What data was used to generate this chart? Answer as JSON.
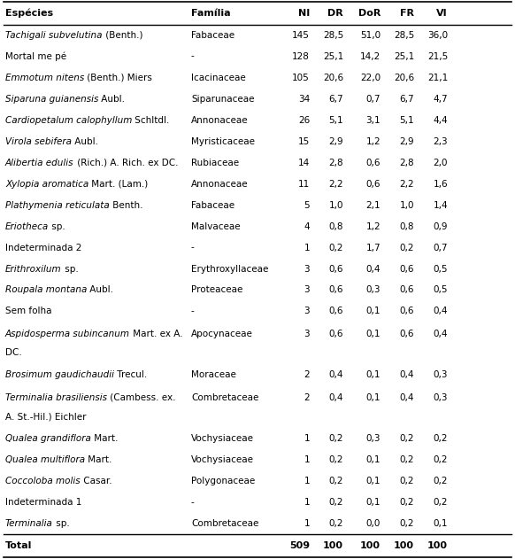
{
  "headers": [
    "Espécies",
    "Família",
    "NI",
    "DR",
    "DoR",
    "FR",
    "VI"
  ],
  "rows": [
    {
      "italic": "Tachigali subvelutina",
      "roman": " (Benth.)",
      "familia": "Fabaceae",
      "NI": "145",
      "DR": "28,5",
      "DoR": "51,0",
      "FR": "28,5",
      "VI": "36,0",
      "double": false
    },
    {
      "italic": "",
      "roman": "Mortal me pé",
      "familia": "-",
      "NI": "128",
      "DR": "25,1",
      "DoR": "14,2",
      "FR": "25,1",
      "VI": "21,5",
      "double": false
    },
    {
      "italic": "Emmotum nitens",
      "roman": " (Benth.) Miers",
      "familia": "Icacinaceae",
      "NI": "105",
      "DR": "20,6",
      "DoR": "22,0",
      "FR": "20,6",
      "VI": "21,1",
      "double": false
    },
    {
      "italic": "Siparuna guianensis",
      "roman": " Aubl.",
      "familia": "Siparunaceae",
      "NI": "34",
      "DR": "6,7",
      "DoR": "0,7",
      "FR": "6,7",
      "VI": "4,7",
      "double": false
    },
    {
      "italic": "Cardiopetalum calophyllum",
      "roman": " Schltdl.",
      "familia": "Annonaceae",
      "NI": "26",
      "DR": "5,1",
      "DoR": "3,1",
      "FR": "5,1",
      "VI": "4,4",
      "double": false
    },
    {
      "italic": "Virola sebifera",
      "roman": " Aubl.",
      "familia": "Myristicaceae",
      "NI": "15",
      "DR": "2,9",
      "DoR": "1,2",
      "FR": "2,9",
      "VI": "2,3",
      "double": false
    },
    {
      "italic": "Alibertia edulis",
      "roman": " (Rich.) A. Rich. ex DC.",
      "familia": "Rubiaceae",
      "NI": "14",
      "DR": "2,8",
      "DoR": "0,6",
      "FR": "2,8",
      "VI": "2,0",
      "double": false
    },
    {
      "italic": "Xylopia aromatica",
      "roman": " Mart. (Lam.)",
      "familia": "Annonaceae",
      "NI": "11",
      "DR": "2,2",
      "DoR": "0,6",
      "FR": "2,2",
      "VI": "1,6",
      "double": false
    },
    {
      "italic": "Plathymenia reticulata",
      "roman": " Benth.",
      "familia": "Fabaceae",
      "NI": "5",
      "DR": "1,0",
      "DoR": "2,1",
      "FR": "1,0",
      "VI": "1,4",
      "double": false
    },
    {
      "italic": "Eriotheca",
      "roman": " sp.",
      "familia": "Malvaceae",
      "NI": "4",
      "DR": "0,8",
      "DoR": "1,2",
      "FR": "0,8",
      "VI": "0,9",
      "double": false
    },
    {
      "italic": "",
      "roman": "Indeterminada 2",
      "familia": "-",
      "NI": "1",
      "DR": "0,2",
      "DoR": "1,7",
      "FR": "0,2",
      "VI": "0,7",
      "double": false
    },
    {
      "italic": "Erithroxilum",
      "roman": " sp.",
      "familia": "Erythroxyllaceae",
      "NI": "3",
      "DR": "0,6",
      "DoR": "0,4",
      "FR": "0,6",
      "VI": "0,5",
      "double": false
    },
    {
      "italic": "Roupala montana",
      "roman": " Aubl.",
      "familia": "Proteaceae",
      "NI": "3",
      "DR": "0,6",
      "DoR": "0,3",
      "FR": "0,6",
      "VI": "0,5",
      "double": false
    },
    {
      "italic": "",
      "roman": "Sem folha",
      "familia": "-",
      "NI": "3",
      "DR": "0,6",
      "DoR": "0,1",
      "FR": "0,6",
      "VI": "0,4",
      "double": false
    },
    {
      "italic": "Aspidosperma subincanum",
      "roman": " Mart. ex A.\nDC.",
      "roman_line1": " Mart. ex A.",
      "roman_line2": "DC.",
      "familia": "Apocynaceae",
      "NI": "3",
      "DR": "0,6",
      "DoR": "0,1",
      "FR": "0,6",
      "VI": "0,4",
      "double": true
    },
    {
      "italic": "Brosimum gaudichaudii",
      "roman": " Trecul.",
      "familia": "Moraceae",
      "NI": "2",
      "DR": "0,4",
      "DoR": "0,1",
      "FR": "0,4",
      "VI": "0,3",
      "double": false
    },
    {
      "italic": "Terminalia brasiliensis",
      "roman": " (Cambess. ex.\nA. St.-Hil.) Eichler",
      "roman_line1": " (Cambess. ex.",
      "roman_line2": "A. St.-Hil.) Eichler",
      "familia": "Combretaceae",
      "NI": "2",
      "DR": "0,4",
      "DoR": "0,1",
      "FR": "0,4",
      "VI": "0,3",
      "double": true
    },
    {
      "italic": "Qualea grandiflora",
      "roman": " Mart.",
      "familia": "Vochysiaceae",
      "NI": "1",
      "DR": "0,2",
      "DoR": "0,3",
      "FR": "0,2",
      "VI": "0,2",
      "double": false
    },
    {
      "italic": "Qualea multiflora",
      "roman": " Mart.",
      "familia": "Vochysiaceae",
      "NI": "1",
      "DR": "0,2",
      "DoR": "0,1",
      "FR": "0,2",
      "VI": "0,2",
      "double": false
    },
    {
      "italic": "Coccoloba molis",
      "roman": " Casar.",
      "familia": "Polygonaceae",
      "NI": "1",
      "DR": "0,2",
      "DoR": "0,1",
      "FR": "0,2",
      "VI": "0,2",
      "double": false
    },
    {
      "italic": "",
      "roman": "Indeterminada 1",
      "familia": "-",
      "NI": "1",
      "DR": "0,2",
      "DoR": "0,1",
      "FR": "0,2",
      "VI": "0,2",
      "double": false
    },
    {
      "italic": "Terminalia",
      "roman": " sp.",
      "familia": "Combretaceae",
      "NI": "1",
      "DR": "0,2",
      "DoR": "0,0",
      "FR": "0,2",
      "VI": "0,1",
      "double": false
    }
  ],
  "total_row": {
    "NI": "509",
    "DR": "100",
    "DoR": "100",
    "FR": "100",
    "VI": "100"
  },
  "bg_color": "#ffffff",
  "text_color": "#000000",
  "font_size": 7.5,
  "header_font_size": 8.0
}
